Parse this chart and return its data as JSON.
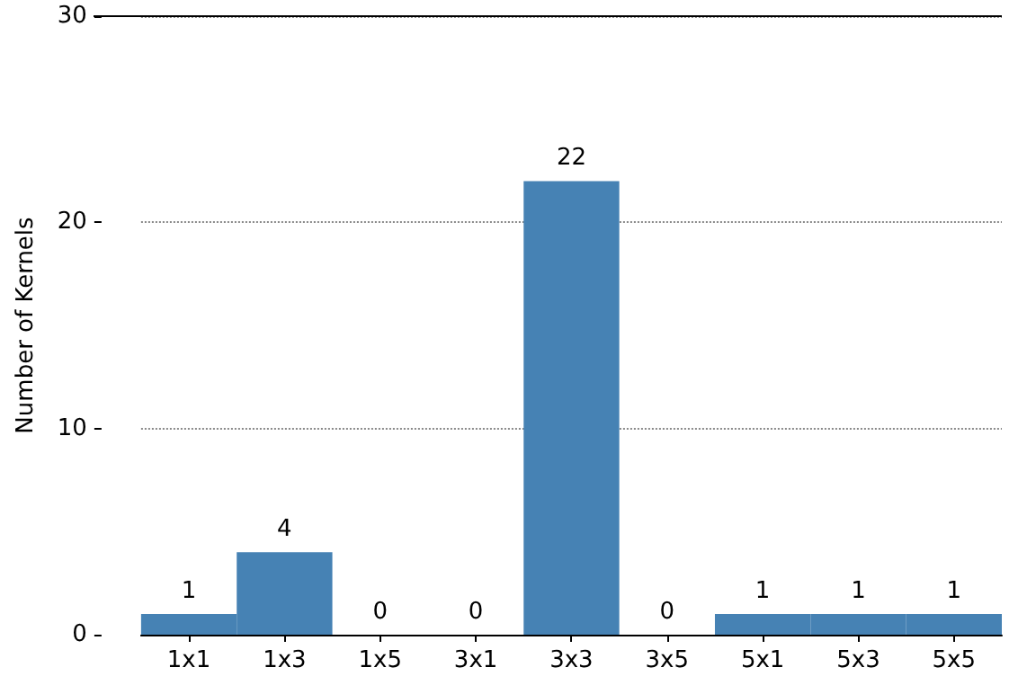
{
  "chart_data": {
    "type": "bar",
    "ylabel": "Number of Kernels",
    "categories": [
      "1x1",
      "1x3",
      "1x5",
      "3x1",
      "3x3",
      "3x5",
      "5x1",
      "5x3",
      "5x5"
    ],
    "values": [
      1,
      4,
      0,
      0,
      22,
      0,
      1,
      1,
      1
    ],
    "color": "#4682b4",
    "ylim": [
      0,
      30
    ],
    "yticks": [
      0,
      10,
      20,
      30
    ],
    "grid": "y",
    "data_labels": true
  }
}
